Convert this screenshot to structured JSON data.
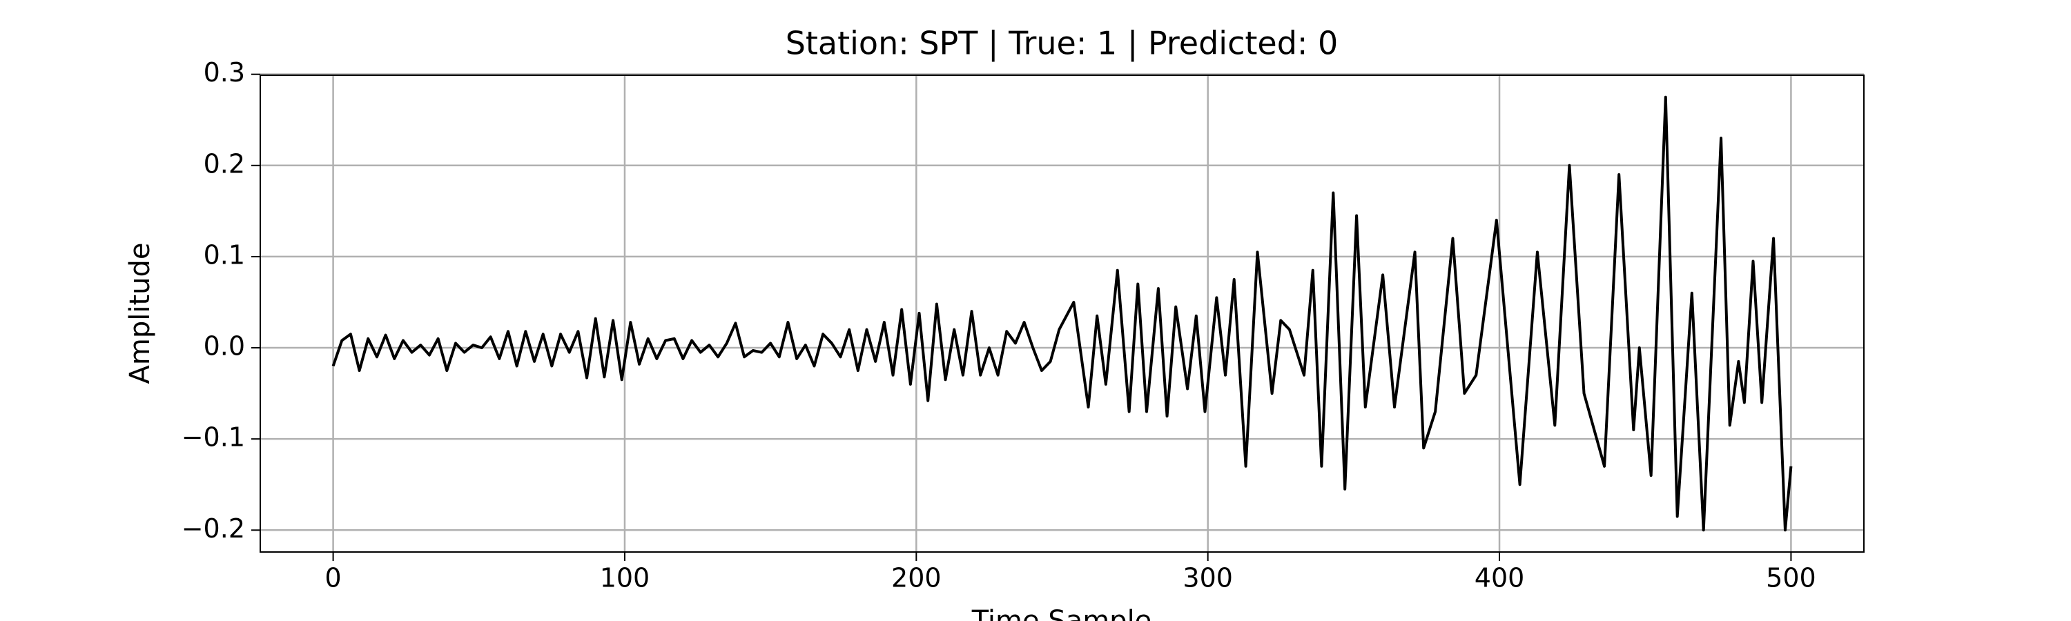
{
  "chart_data": {
    "type": "line",
    "title": "Station: SPT | True: 1 | Predicted: 0",
    "xlabel": "Time Sample",
    "ylabel": "Amplitude",
    "color": "#000000",
    "grid": true,
    "xlim": [
      -25,
      525
    ],
    "ylim": [
      -0.224,
      0.299
    ],
    "xticks": [
      0,
      100,
      200,
      300,
      400,
      500
    ],
    "yticks": [
      {
        "value": -0.2,
        "label": "−0.2"
      },
      {
        "value": -0.1,
        "label": "−0.1"
      },
      {
        "value": 0,
        "label": "0.0"
      },
      0.1,
      0.2,
      0.3
    ],
    "x": [
      0,
      3,
      6,
      9,
      12,
      15,
      18,
      21,
      24,
      27,
      30,
      33,
      36,
      39,
      42,
      45,
      48,
      51,
      54,
      57,
      60,
      63,
      66,
      69,
      72,
      75,
      78,
      81,
      84,
      87,
      90,
      93,
      96,
      99,
      102,
      105,
      108,
      111,
      114,
      117,
      120,
      123,
      126,
      129,
      132,
      135,
      138,
      141,
      144,
      147,
      150,
      153,
      156,
      159,
      162,
      165,
      168,
      171,
      174,
      177,
      180,
      183,
      186,
      189,
      192,
      195,
      198,
      201,
      204,
      207,
      210,
      213,
      216,
      219,
      222,
      225,
      228,
      231,
      234,
      237,
      240,
      243,
      246,
      249,
      254,
      259,
      262,
      265,
      269,
      273,
      276,
      279,
      283,
      286,
      289,
      293,
      296,
      299,
      303,
      306,
      309,
      313,
      317,
      322,
      325,
      328,
      333,
      336,
      339,
      343,
      347,
      351,
      354,
      360,
      364,
      371,
      374,
      378,
      384,
      388,
      392,
      399,
      407,
      413,
      419,
      424,
      429,
      436,
      441,
      446,
      448,
      452,
      457,
      461,
      466,
      470,
      476,
      479,
      482,
      484,
      487,
      490,
      494,
      498,
      500
    ],
    "values": [
      -0.02,
      0.008,
      0.015,
      -0.025,
      0.01,
      -0.01,
      0.014,
      -0.012,
      0.008,
      -0.005,
      0.003,
      -0.008,
      0.01,
      -0.025,
      0.005,
      -0.005,
      0.003,
      0.0,
      0.012,
      -0.012,
      0.018,
      -0.02,
      0.018,
      -0.015,
      0.015,
      -0.02,
      0.015,
      -0.005,
      0.018,
      -0.033,
      0.032,
      -0.032,
      0.03,
      -0.035,
      0.028,
      -0.018,
      0.01,
      -0.012,
      0.008,
      0.01,
      -0.012,
      0.008,
      -0.005,
      0.003,
      -0.01,
      0.005,
      0.027,
      -0.01,
      -0.003,
      -0.005,
      0.005,
      -0.01,
      0.028,
      -0.012,
      0.003,
      -0.02,
      0.015,
      0.005,
      -0.01,
      0.02,
      -0.025,
      0.02,
      -0.015,
      0.028,
      -0.03,
      0.042,
      -0.04,
      0.038,
      -0.058,
      0.048,
      -0.035,
      0.02,
      -0.03,
      0.04,
      -0.03,
      0.0,
      -0.03,
      0.018,
      0.005,
      0.028,
      0.0,
      -0.025,
      -0.015,
      0.02,
      0.05,
      -0.065,
      0.035,
      -0.04,
      0.085,
      -0.07,
      0.07,
      -0.07,
      0.065,
      -0.075,
      0.045,
      -0.045,
      0.035,
      -0.07,
      0.055,
      -0.03,
      0.075,
      -0.13,
      0.105,
      -0.05,
      0.03,
      0.02,
      -0.03,
      0.085,
      -0.13,
      0.17,
      -0.155,
      0.145,
      -0.065,
      0.08,
      -0.065,
      0.105,
      -0.11,
      -0.07,
      0.12,
      -0.05,
      -0.03,
      0.14,
      -0.15,
      0.105,
      -0.085,
      0.2,
      -0.05,
      -0.13,
      0.19,
      -0.09,
      0.0,
      -0.14,
      0.275,
      -0.185,
      0.06,
      -0.2,
      0.23,
      -0.085,
      -0.015,
      -0.06,
      0.095,
      -0.06,
      0.12,
      -0.2,
      -0.13
    ]
  }
}
